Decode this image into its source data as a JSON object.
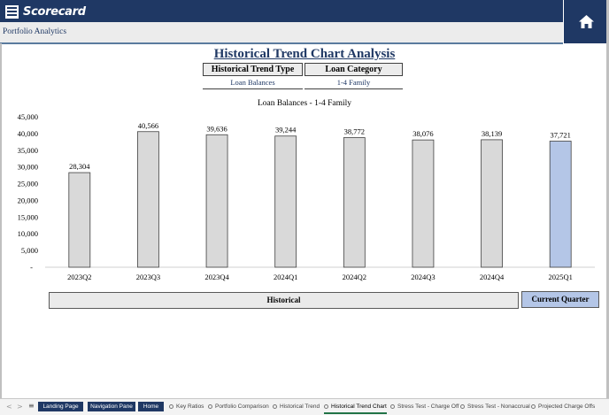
{
  "app": {
    "logo_text": "Scorecard",
    "subtitle": "Portfolio Analytics"
  },
  "page": {
    "title": "Historical Trend Chart Analysis",
    "filters": [
      {
        "label": "Historical Trend Type",
        "value": "Loan Balances"
      },
      {
        "label": "Loan Category",
        "value": "1-4 Family"
      }
    ]
  },
  "chart_data": {
    "type": "bar",
    "title": "Loan Balances - 1-4 Family",
    "categories": [
      "2023Q2",
      "2023Q3",
      "2023Q4",
      "2024Q1",
      "2024Q2",
      "2024Q3",
      "2024Q4",
      "2025Q1"
    ],
    "values": [
      28304,
      40566,
      39636,
      39244,
      38772,
      38076,
      38139,
      37721
    ],
    "value_labels": [
      "28,304",
      "40,566",
      "39,636",
      "39,244",
      "38,772",
      "38,076",
      "38,139",
      "37,721"
    ],
    "y_ticks": [
      "45,000",
      "40,000",
      "35,000",
      "30,000",
      "25,000",
      "20,000",
      "15,000",
      "10,000",
      "5,000",
      "-"
    ],
    "ylim": [
      0,
      45000
    ],
    "colors": {
      "historical": "#d9d9d9",
      "current": "#b4c6e7"
    },
    "grid": false
  },
  "bands": {
    "historical": "Historical",
    "current": "Current Quarter"
  },
  "tabs": {
    "nav_tabs": [
      "Landing Page",
      "Navigation Pane",
      "Home"
    ],
    "sheet_tabs": [
      "Key Ratios",
      "Portfolio Comparison",
      "Historical Trend",
      "Historical Trend Chart",
      "Stress Test - Charge Off",
      "Stress Test - Nonaccrual",
      "Projected Charge Offs"
    ],
    "nav_arrows": [
      "<",
      ">",
      "...",
      "≡"
    ]
  }
}
